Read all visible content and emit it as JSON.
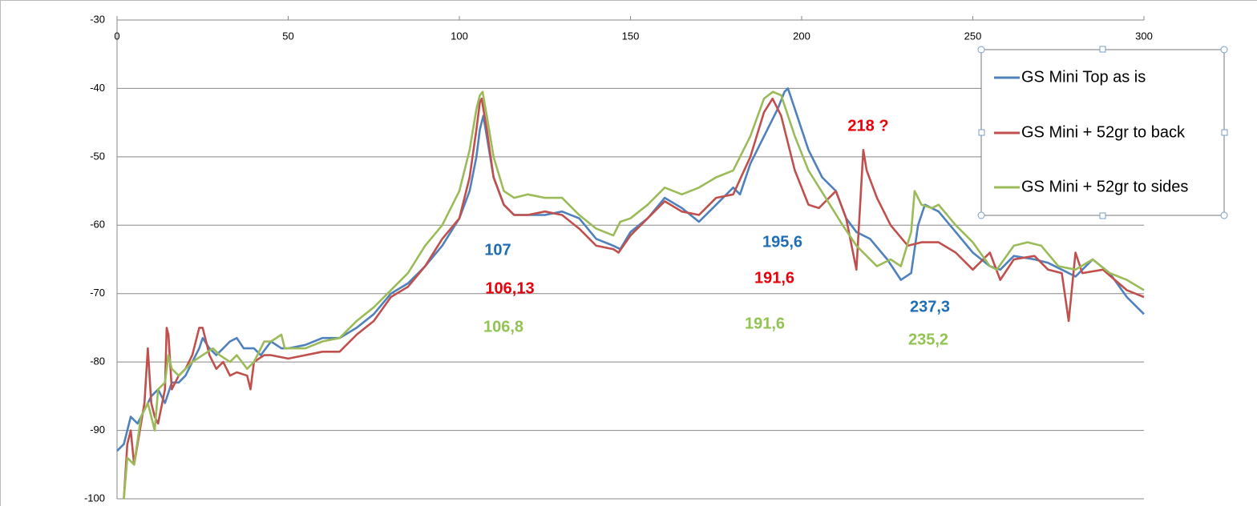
{
  "chart_data": {
    "type": "line",
    "xlim": [
      0,
      300
    ],
    "xticks": [
      0,
      50,
      100,
      150,
      200,
      250,
      300
    ],
    "ylim": [
      -100,
      -30
    ],
    "yticks": [
      -30,
      -40,
      -50,
      -60,
      -70,
      -80,
      -90,
      -100
    ],
    "grid": true,
    "legend": "upper right",
    "series": [
      {
        "name": "GS Mini Top as is",
        "color": "#4f81bd",
        "x": [
          0,
          2,
          4,
          6,
          8,
          10,
          12,
          14,
          16,
          18,
          20,
          22,
          24,
          25,
          27,
          29,
          31,
          33,
          35,
          37,
          40,
          42,
          45,
          48,
          50,
          55,
          60,
          65,
          70,
          75,
          80,
          85,
          90,
          95,
          100,
          103,
          105,
          106,
          107,
          108,
          110,
          113,
          116,
          120,
          125,
          130,
          135,
          140,
          145,
          147,
          150,
          155,
          160,
          165,
          170,
          175,
          180,
          182,
          185,
          190,
          193,
          195,
          196,
          198,
          202,
          206,
          210,
          213,
          216,
          220,
          225,
          229,
          232,
          234,
          236,
          240,
          245,
          250,
          255,
          258,
          262,
          268,
          272,
          276,
          280,
          285,
          290,
          295,
          300
        ],
        "values": [
          -93,
          -92,
          -88,
          -89,
          -87,
          -85,
          -84,
          -86,
          -83,
          -83,
          -82,
          -80,
          -78,
          -76.5,
          -78,
          -79,
          -78,
          -77,
          -76.5,
          -78,
          -78,
          -79,
          -77,
          -78,
          -78,
          -77.5,
          -76.5,
          -76.5,
          -75,
          -73,
          -70,
          -68.5,
          -66,
          -63,
          -59,
          -55,
          -50,
          -46,
          -44,
          -47,
          -53,
          -57,
          -58.5,
          -58.5,
          -58.5,
          -58,
          -59,
          -62,
          -63,
          -63.5,
          -61,
          -59,
          -56,
          -57.5,
          -59.5,
          -57,
          -54.5,
          -55.5,
          -51,
          -46,
          -43,
          -40.5,
          -40,
          -43,
          -49,
          -53,
          -55,
          -59,
          -61,
          -62,
          -65,
          -68,
          -67,
          -60,
          -57,
          -58,
          -61,
          -64,
          -66,
          -66.5,
          -64.5,
          -65,
          -65.5,
          -66.5,
          -67.5,
          -65,
          -67,
          -70.5,
          -73
        ]
      },
      {
        "name": "GS Mini + 52gr to back",
        "color": "#c0504d",
        "x": [
          2,
          3,
          4,
          5,
          7,
          8,
          9,
          10,
          11,
          12,
          14,
          14.5,
          15,
          16,
          18,
          20,
          22,
          24,
          25,
          27,
          29,
          31,
          33,
          35,
          38,
          39,
          40,
          43,
          45,
          50,
          55,
          60,
          65,
          70,
          75,
          80,
          85,
          90,
          95,
          100,
          103,
          105,
          106,
          106.5,
          108,
          110,
          113,
          116,
          120,
          125,
          130,
          135,
          140,
          145,
          146.5,
          150,
          155,
          160,
          165,
          170,
          175,
          180,
          185,
          189,
          191.5,
          194,
          198,
          202,
          205,
          210,
          213,
          216,
          218,
          219,
          222,
          226,
          231,
          235,
          240,
          245,
          250,
          255,
          258,
          262,
          268,
          272,
          276,
          278,
          280,
          282,
          288,
          295,
          300
        ],
        "values": [
          -100,
          -92,
          -90,
          -95,
          -89,
          -86,
          -78,
          -86,
          -88,
          -89,
          -84,
          -75,
          -76,
          -84,
          -82,
          -81,
          -79,
          -75,
          -75,
          -79,
          -81,
          -80,
          -82,
          -81.5,
          -82,
          -84,
          -80,
          -79,
          -79,
          -79.5,
          -79,
          -78.5,
          -78.5,
          -76,
          -74,
          -70.5,
          -69,
          -66,
          -62,
          -59,
          -53,
          -46,
          -42,
          -41.5,
          -46,
          -53,
          -57,
          -58.5,
          -58.5,
          -58,
          -58.5,
          -60.5,
          -63,
          -63.5,
          -64,
          -61.5,
          -59,
          -56.5,
          -58,
          -58.5,
          -56,
          -55.5,
          -50,
          -43.5,
          -41.5,
          -44,
          -52,
          -57,
          -57.5,
          -55,
          -59,
          -66.5,
          -49,
          -52,
          -56,
          -60,
          -63,
          -62.5,
          -62.5,
          -64,
          -66.5,
          -64,
          -68,
          -65,
          -64.5,
          -66.5,
          -67,
          -74,
          -64,
          -67,
          -66.5,
          -69.5,
          -70.5
        ]
      },
      {
        "name": "GS Mini + 52gr to sides",
        "color": "#9bbb59",
        "x": [
          2,
          3,
          5,
          7,
          9,
          11,
          12,
          14,
          15,
          16,
          18,
          20,
          22,
          25,
          28,
          30,
          33,
          35,
          38,
          40,
          43,
          45,
          48,
          49,
          52,
          55,
          60,
          65,
          70,
          75,
          80,
          85,
          90,
          95,
          100,
          103,
          105,
          106,
          106.8,
          108,
          110,
          113,
          116,
          120,
          125,
          130,
          135,
          140,
          145,
          147,
          150,
          155,
          160,
          165,
          170,
          175,
          180,
          185,
          189,
          191.6,
          194,
          198,
          202,
          207,
          212,
          216,
          222,
          226,
          229,
          232,
          233,
          235,
          238,
          240,
          245,
          250,
          255,
          257,
          262,
          266,
          270,
          275,
          280,
          285,
          290,
          295,
          300
        ],
        "values": [
          -100,
          -94,
          -95,
          -88,
          -86,
          -90,
          -84,
          -83,
          -79,
          -81,
          -82,
          -81,
          -80,
          -79,
          -78,
          -79,
          -80,
          -79,
          -81,
          -80,
          -77,
          -77,
          -76,
          -78,
          -78,
          -78,
          -77,
          -76.5,
          -74,
          -72,
          -69.5,
          -67,
          -63,
          -60,
          -55,
          -49,
          -43,
          -41,
          -40.5,
          -44,
          -50,
          -55,
          -56,
          -55.5,
          -56,
          -56,
          -58.5,
          -60.5,
          -61.5,
          -59.5,
          -59,
          -57,
          -54.5,
          -55.5,
          -54.5,
          -53,
          -52,
          -47,
          -41.5,
          -40.5,
          -41,
          -47,
          -52,
          -56,
          -60,
          -63,
          -66,
          -65,
          -66,
          -61,
          -55,
          -57,
          -57.5,
          -57,
          -60,
          -62.5,
          -66,
          -66.5,
          -63,
          -62.5,
          -63,
          -66,
          -66.5,
          -65,
          -67,
          -68,
          -69.5
        ]
      }
    ],
    "annotations": [
      {
        "text": "107",
        "color": "#1f6db5"
      },
      {
        "text": "106,13",
        "color": "#e8000b"
      },
      {
        "text": "106,8",
        "color": "#92c353"
      },
      {
        "text": "195,6",
        "color": "#1f6db5"
      },
      {
        "text": "191,6",
        "color": "#e8000b"
      },
      {
        "text": "191,6",
        "color": "#92c353"
      },
      {
        "text": "218 ?",
        "color": "#e8000b"
      },
      {
        "text": "237,3",
        "color": "#1f6db5"
      },
      {
        "text": "235,2",
        "color": "#92c353"
      }
    ]
  }
}
